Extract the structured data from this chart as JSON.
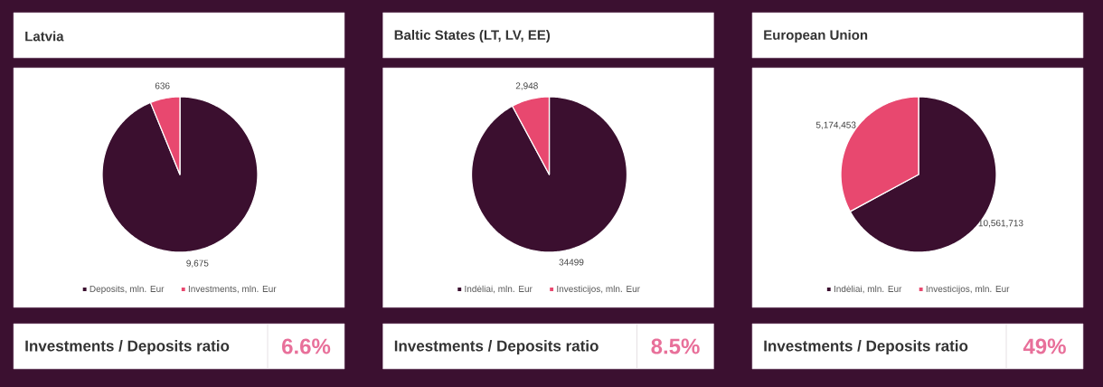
{
  "chart_data": [
    {
      "type": "pie",
      "title": "Latvia",
      "categories": [
        "Deposits, mln. Eur",
        "Investments, mln. Eur"
      ],
      "values": [
        9675,
        636
      ],
      "colors": [
        "#3b0f2f",
        "#e8486f"
      ],
      "value_labels": [
        "9,675",
        "636"
      ],
      "legend": "bottom",
      "annotations": [
        "Investments / Deposits ratio",
        "6.6%"
      ]
    },
    {
      "type": "pie",
      "title": "Baltic States (LT, LV, EE)",
      "categories": [
        "Indėliai, mln. Eur",
        "Investicijos, mln. Eur"
      ],
      "values": [
        34499,
        2948
      ],
      "colors": [
        "#3b0f2f",
        "#e8486f"
      ],
      "value_labels": [
        "34499",
        "2,948"
      ],
      "legend": "bottom",
      "annotations": [
        "Investments / Deposits ratio",
        "8.5%"
      ]
    },
    {
      "type": "pie",
      "title": "European Union",
      "categories": [
        "Indėliai, mln. Eur",
        "Investicijos, mln. Eur"
      ],
      "values": [
        10561713,
        5174453
      ],
      "colors": [
        "#3b0f2f",
        "#e8486f"
      ],
      "value_labels": [
        "10,561,713",
        "5,174,453"
      ],
      "legend": "bottom",
      "annotations": [
        "Investments / Deposits ratio",
        "49%"
      ]
    }
  ]
}
